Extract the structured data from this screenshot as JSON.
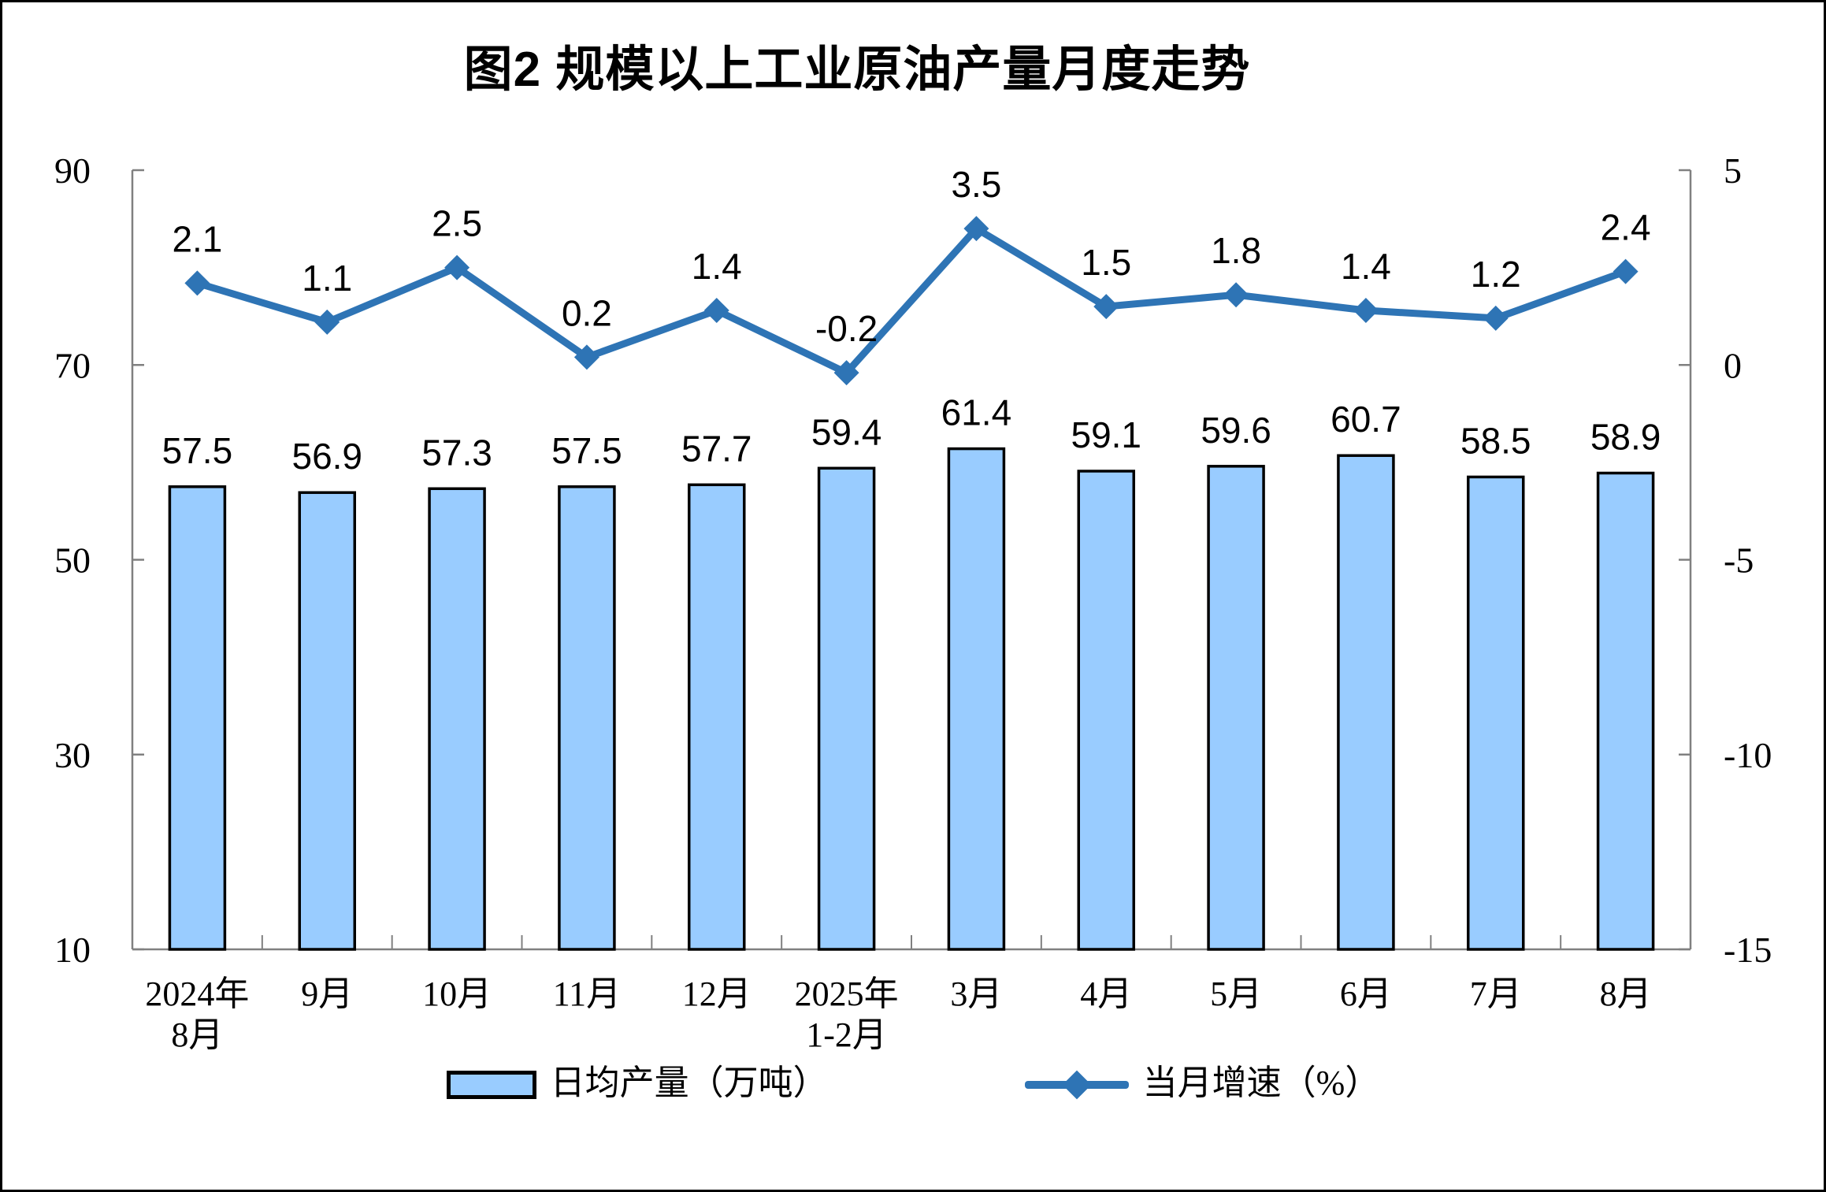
{
  "title": "图2 规模以上工业原油产量月度走势",
  "chart_data": {
    "type": "bar",
    "subtype": "bar+line combo, dual y-axes",
    "categories": [
      "2024年\n8月",
      "9月",
      "10月",
      "11月",
      "12月",
      "2025年\n1-2月",
      "3月",
      "4月",
      "5月",
      "6月",
      "7月",
      "8月"
    ],
    "series": [
      {
        "name": "日均产量（万吨）",
        "type": "bar",
        "axis": "left",
        "values": [
          57.5,
          56.9,
          57.3,
          57.5,
          57.7,
          59.4,
          61.4,
          59.1,
          59.6,
          60.7,
          58.5,
          58.9
        ]
      },
      {
        "name": "当月增速（%）",
        "type": "line",
        "axis": "right",
        "marker": "diamond",
        "values": [
          2.1,
          1.1,
          2.5,
          0.2,
          1.4,
          -0.2,
          3.5,
          1.5,
          1.8,
          1.4,
          1.2,
          2.4
        ]
      }
    ],
    "left_axis": {
      "min": 10,
      "max": 90,
      "ticks": [
        10,
        30,
        50,
        70,
        90
      ]
    },
    "right_axis": {
      "min": -15,
      "max": 5,
      "ticks": [
        -15,
        -10,
        -5,
        0,
        5
      ]
    },
    "grid": false,
    "data_labels": true,
    "legend_position": "bottom"
  },
  "legend": {
    "items": [
      {
        "label": "日均产量（万吨）",
        "swatch": "bar"
      },
      {
        "label": "当月增速（%）",
        "swatch": "line"
      }
    ]
  },
  "colors": {
    "bar_fill": "#99CCFF",
    "bar_stroke": "#000000",
    "line": "#2E74B5",
    "axis": "#808080",
    "text": "#000000",
    "background": "#FFFFFF"
  }
}
